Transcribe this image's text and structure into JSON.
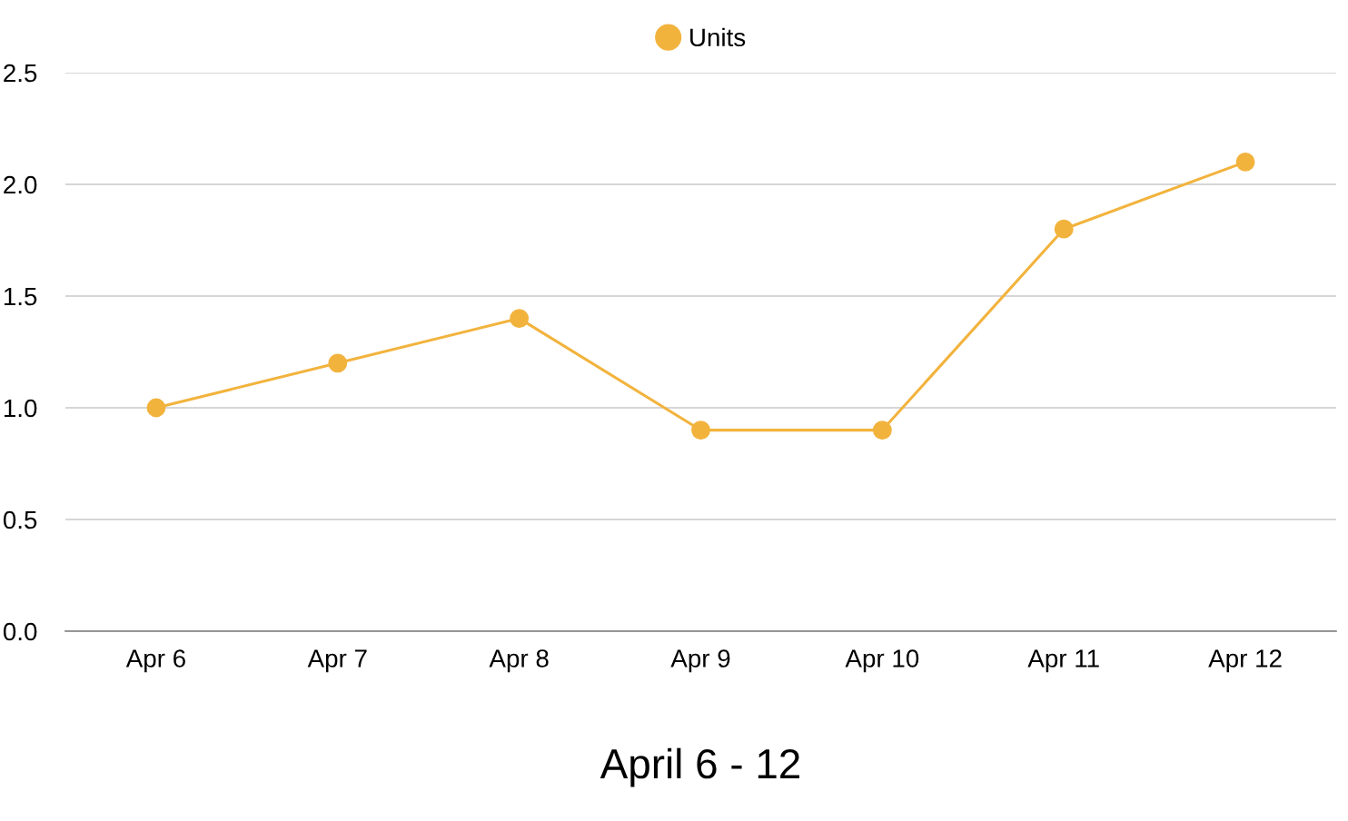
{
  "chart_data": {
    "type": "line",
    "xlabel": "April 6 - 12",
    "categories": [
      "Apr 6",
      "Apr 7",
      "Apr 8",
      "Apr 9",
      "Apr 10",
      "Apr 11",
      "Apr 12"
    ],
    "series": [
      {
        "name": "Units",
        "color": "#f2b33d",
        "values": [
          1.0,
          1.2,
          1.4,
          0.9,
          0.9,
          1.8,
          2.1
        ]
      }
    ],
    "ylim": [
      0,
      2.5
    ],
    "yticks": [
      {
        "value": 0,
        "label": "0.0"
      },
      {
        "value": 0.5,
        "label": "0.5"
      },
      {
        "value": 1,
        "label": "1.0"
      },
      {
        "value": 1.5,
        "label": "1.5"
      },
      {
        "value": 2,
        "label": "2.0"
      },
      {
        "value": 2.5,
        "label": "2.5"
      }
    ],
    "grid": "y",
    "legend": "top",
    "marker": "circle",
    "line_style": "solid"
  }
}
